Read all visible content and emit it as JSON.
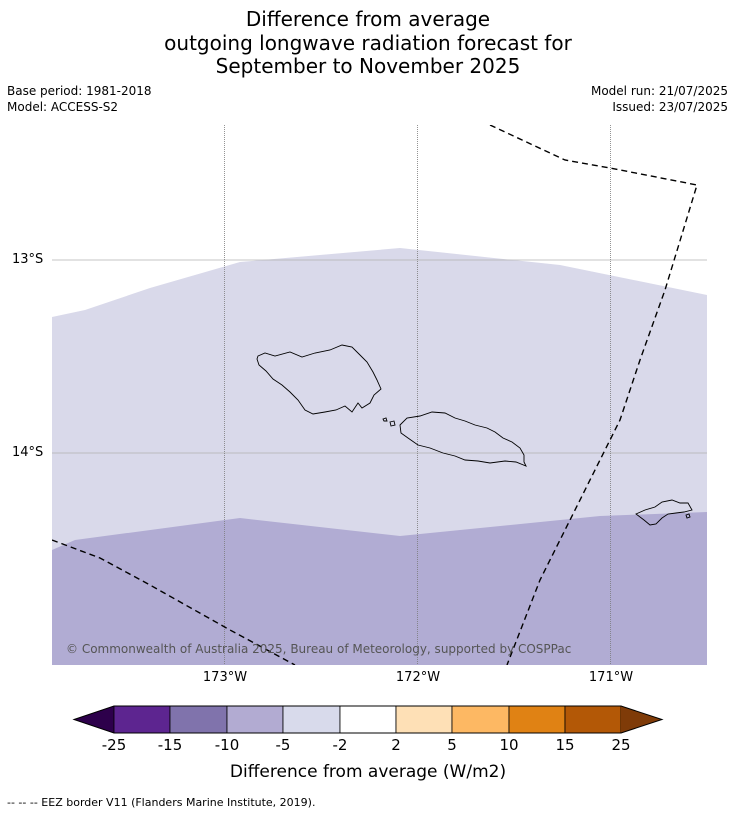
{
  "title": {
    "line1": "Difference from average",
    "line2": "outgoing longwave radiation forecast for",
    "line3": "September to November 2025"
  },
  "meta_left": {
    "base_period": "Base period: 1981-2018",
    "model": "Model: ACCESS-S2"
  },
  "meta_right": {
    "model_run": "Model run: 21/07/2025",
    "issued": "Issued: 23/07/2025"
  },
  "map": {
    "lat_labels": [
      "13°S",
      "14°S"
    ],
    "lon_labels": [
      "173°W",
      "172°W",
      "171°W"
    ],
    "copyright": "© Commonwealth of Australia 2025, Bureau of Meteorology, supported by COSPPac",
    "regions": [
      {
        "category": "-5 to -2",
        "color": "#d9d9ea"
      },
      {
        "category": "-10 to -5",
        "color": "#b1acd3"
      }
    ]
  },
  "colorbar": {
    "ticks": [
      "-25",
      "-15",
      "-10",
      "-5",
      "-2",
      "2",
      "5",
      "10",
      "15",
      "25"
    ],
    "colors": [
      "#2d004b",
      "#5d2590",
      "#8073ac",
      "#b2abd2",
      "#d8daeb",
      "#ffffff",
      "#fee0b6",
      "#fdb863",
      "#e08214",
      "#b35806",
      "#7f3b08"
    ],
    "label": "Difference from average (W/m2)"
  },
  "footnote": "--  --  -- EEZ border V11 (Flanders Marine Institute, 2019)."
}
